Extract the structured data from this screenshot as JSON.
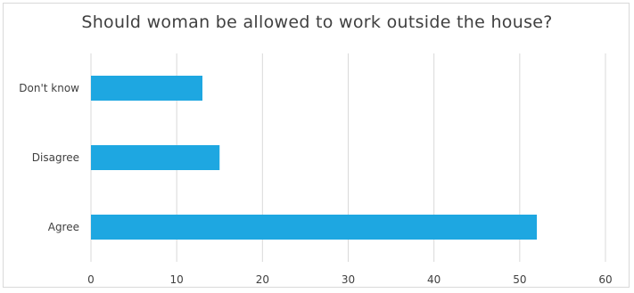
{
  "chart_data": {
    "type": "bar",
    "orientation": "horizontal",
    "title": "Should woman be allowed to work outside the house?",
    "categories": [
      "Agree",
      "Disagree",
      "Don't know"
    ],
    "values": [
      52,
      15,
      13
    ],
    "xlabel": "",
    "ylabel": "",
    "xlim": [
      0,
      60
    ],
    "xticks": [
      "0",
      "10",
      "20",
      "30",
      "40",
      "50",
      "60"
    ],
    "grid": "vertical",
    "legend": "none",
    "bar_color": "#1ea7e1",
    "grid_color": "#d9d9d9"
  }
}
